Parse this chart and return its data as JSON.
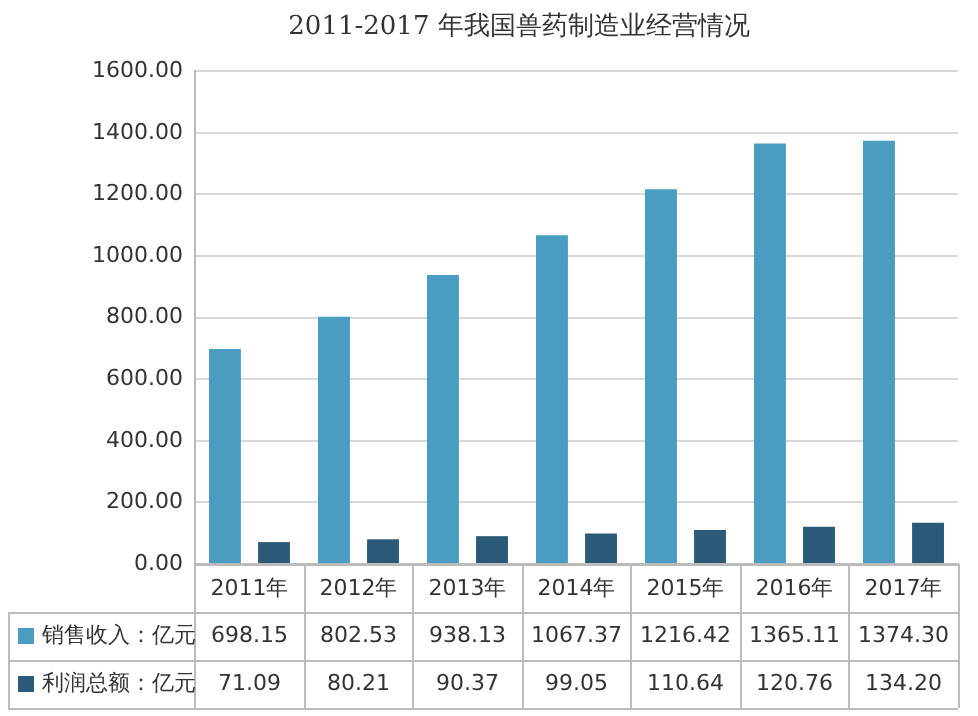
{
  "chart_data": {
    "type": "bar",
    "title": "2011-2017 年我国兽药制造业经营情况",
    "categories": [
      "2011年",
      "2012年",
      "2013年",
      "2014年",
      "2015年",
      "2016年",
      "2017年"
    ],
    "series": [
      {
        "name": "销售收入：亿元",
        "color": "#4a9cc0",
        "values": [
          698.15,
          802.53,
          938.13,
          1067.37,
          1216.42,
          1365.11,
          1374.3
        ],
        "value_labels": [
          "698.15",
          "802.53",
          "938.13",
          "1067.37",
          "1216.42",
          "1365.11",
          "1374.30"
        ]
      },
      {
        "name": "利润总额：亿元",
        "color": "#2b5a78",
        "values": [
          71.09,
          80.21,
          90.37,
          99.05,
          110.64,
          120.76,
          134.2
        ],
        "value_labels": [
          "71.09",
          "80.21",
          "90.37",
          "99.05",
          "110.64",
          "120.76",
          "134.20"
        ]
      }
    ],
    "ylim": [
      0,
      1600
    ],
    "yticks": [
      {
        "value": 0,
        "label": "0.00"
      },
      {
        "value": 200,
        "label": "200.00"
      },
      {
        "value": 400,
        "label": "400.00"
      },
      {
        "value": 600,
        "label": "600.00"
      },
      {
        "value": 800,
        "label": "800.00"
      },
      {
        "value": 1000,
        "label": "1000.00"
      },
      {
        "value": 1200,
        "label": "1200.00"
      },
      {
        "value": 1400,
        "label": "1400.00"
      },
      {
        "value": 1600,
        "label": "1600.00"
      }
    ],
    "grid": "y",
    "legend": "bottom"
  }
}
